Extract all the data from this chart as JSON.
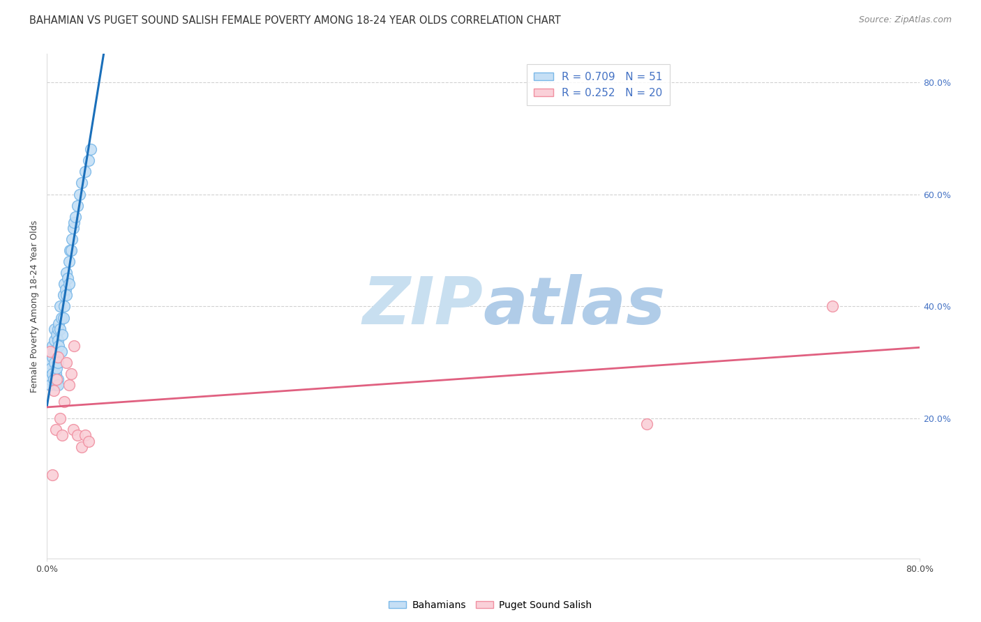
{
  "title": "BAHAMIAN VS PUGET SOUND SALISH FEMALE POVERTY AMONG 18-24 YEAR OLDS CORRELATION CHART",
  "source": "Source: ZipAtlas.com",
  "ylabel": "Female Poverty Among 18-24 Year Olds",
  "xlim": [
    0.0,
    0.8
  ],
  "ylim": [
    -0.05,
    0.85
  ],
  "xtick_positions": [
    0.0,
    0.8
  ],
  "xtick_labels": [
    "0.0%",
    "80.0%"
  ],
  "ytick_positions": [
    0.2,
    0.4,
    0.6,
    0.8
  ],
  "ytick_labels": [
    "20.0%",
    "40.0%",
    "60.0%",
    "80.0%"
  ],
  "blue_R": 0.709,
  "blue_N": 51,
  "pink_R": 0.252,
  "pink_N": 20,
  "blue_edge_color": "#7ab8e8",
  "pink_edge_color": "#f08fa0",
  "blue_line_color": "#1a6fba",
  "pink_line_color": "#e06080",
  "blue_fill_color": "#c5dff5",
  "pink_fill_color": "#fad0d8",
  "background_color": "#ffffff",
  "grid_color": "#cccccc",
  "watermark_zip_color": "#c8dff0",
  "watermark_atlas_color": "#b0cce8",
  "blue_x": [
    0.002,
    0.003,
    0.003,
    0.004,
    0.005,
    0.005,
    0.005,
    0.006,
    0.006,
    0.007,
    0.007,
    0.007,
    0.008,
    0.008,
    0.008,
    0.009,
    0.009,
    0.01,
    0.01,
    0.01,
    0.01,
    0.01,
    0.011,
    0.011,
    0.012,
    0.012,
    0.013,
    0.013,
    0.014,
    0.015,
    0.015,
    0.016,
    0.016,
    0.017,
    0.018,
    0.018,
    0.019,
    0.02,
    0.02,
    0.021,
    0.022,
    0.023,
    0.024,
    0.025,
    0.026,
    0.028,
    0.03,
    0.032,
    0.035,
    0.038,
    0.04
  ],
  "blue_y": [
    0.3,
    0.27,
    0.26,
    0.29,
    0.33,
    0.31,
    0.28,
    0.32,
    0.27,
    0.34,
    0.36,
    0.3,
    0.28,
    0.32,
    0.26,
    0.35,
    0.29,
    0.36,
    0.34,
    0.3,
    0.27,
    0.26,
    0.37,
    0.33,
    0.4,
    0.36,
    0.38,
    0.32,
    0.35,
    0.42,
    0.38,
    0.44,
    0.4,
    0.43,
    0.46,
    0.42,
    0.45,
    0.48,
    0.44,
    0.5,
    0.5,
    0.52,
    0.54,
    0.55,
    0.56,
    0.58,
    0.6,
    0.62,
    0.64,
    0.66,
    0.68
  ],
  "pink_x": [
    0.003,
    0.005,
    0.006,
    0.008,
    0.009,
    0.01,
    0.012,
    0.014,
    0.016,
    0.018,
    0.02,
    0.022,
    0.024,
    0.025,
    0.028,
    0.032,
    0.035,
    0.038,
    0.55,
    0.72
  ],
  "pink_y": [
    0.32,
    0.1,
    0.25,
    0.18,
    0.27,
    0.31,
    0.2,
    0.17,
    0.23,
    0.3,
    0.26,
    0.28,
    0.18,
    0.33,
    0.17,
    0.15,
    0.17,
    0.16,
    0.19,
    0.4
  ],
  "title_fontsize": 10.5,
  "axis_label_fontsize": 9,
  "tick_fontsize": 9,
  "legend_fontsize": 11,
  "source_fontsize": 9
}
